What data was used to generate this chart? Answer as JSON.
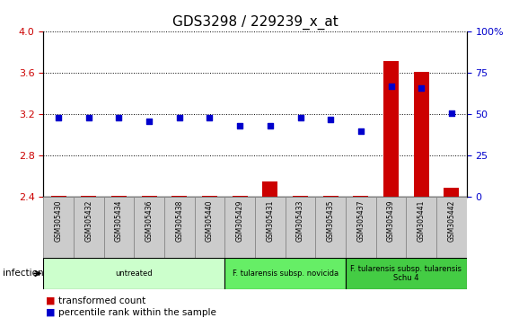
{
  "title": "GDS3298 / 229239_x_at",
  "samples": [
    "GSM305430",
    "GSM305432",
    "GSM305434",
    "GSM305436",
    "GSM305438",
    "GSM305440",
    "GSM305429",
    "GSM305431",
    "GSM305433",
    "GSM305435",
    "GSM305437",
    "GSM305439",
    "GSM305441",
    "GSM305442"
  ],
  "transformed_count": [
    2.41,
    2.41,
    2.41,
    2.41,
    2.41,
    2.41,
    2.41,
    2.55,
    2.41,
    2.41,
    2.41,
    3.72,
    3.61,
    2.49
  ],
  "percentile_rank": [
    48,
    48,
    48,
    46,
    48,
    48,
    43,
    43,
    48,
    47,
    40,
    67,
    66,
    51
  ],
  "ylim_left": [
    2.4,
    4.0
  ],
  "ylim_right": [
    0,
    100
  ],
  "yticks_left": [
    2.4,
    2.8,
    3.2,
    3.6,
    4.0
  ],
  "yticks_right": [
    0,
    25,
    50,
    75,
    100
  ],
  "bar_color": "#cc0000",
  "dot_color": "#0000cc",
  "bar_width": 0.5,
  "groups": [
    {
      "label": "untreated",
      "start": 0,
      "end": 5,
      "color": "#ccffcc"
    },
    {
      "label": "F. tularensis subsp. novicida",
      "start": 6,
      "end": 9,
      "color": "#66ee66"
    },
    {
      "label": "F. tularensis subsp. tularensis\nSchu 4",
      "start": 10,
      "end": 13,
      "color": "#44cc44"
    }
  ],
  "infection_label": "infection",
  "legend_bar_label": "transformed count",
  "legend_dot_label": "percentile rank within the sample",
  "title_fontsize": 11,
  "axis_label_color_left": "#cc0000",
  "axis_label_color_right": "#0000cc",
  "sample_box_color": "#cccccc",
  "sample_box_edge": "#888888",
  "group_edge": "#000000"
}
